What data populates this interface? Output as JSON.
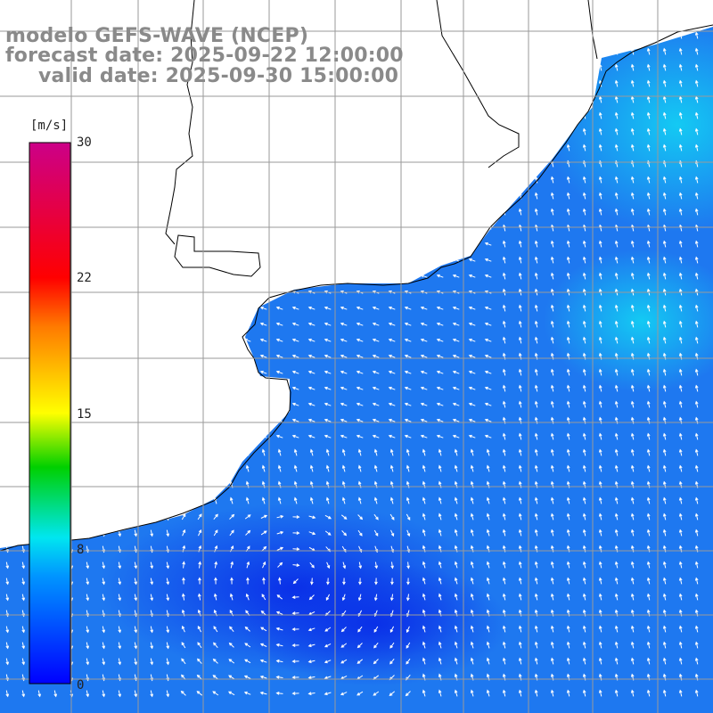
{
  "title": {
    "line1": "modelo GEFS-WAVE (NCEP)",
    "line2": "forecast date: 2025-09-22 12:00:00",
    "line3": "valid date: 2025-09-30 15:00:00"
  },
  "colorbar": {
    "unit": "[m/s]",
    "ticks": [
      "30",
      "22",
      "15",
      "8",
      "0"
    ],
    "colors": [
      "#0000ff",
      "#0096ff",
      "#00e6f0",
      "#00d000",
      "#ffff00",
      "#ff7a00",
      "#ff0000",
      "#cc0088"
    ]
  },
  "map": {
    "ocean_color": "#1e78f0",
    "calm_color": "#0a28e0",
    "land_color": "#ffffff",
    "arrow_color": "#ffffff",
    "grid_color": "#999999",
    "coast_color": "#000000"
  }
}
